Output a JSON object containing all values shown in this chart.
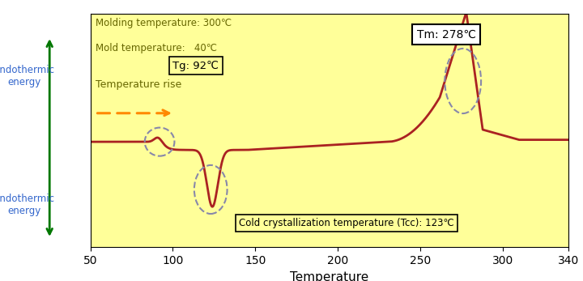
{
  "bg_color": "#FFFF99",
  "curve_color": "#AA2222",
  "x_min": 50,
  "x_max": 340,
  "x_label": "Temperature",
  "x_ticks": [
    50,
    100,
    150,
    200,
    250,
    300,
    340
  ],
  "title_line1": "Molding temperature: 300℃",
  "title_line2": "Mold temperature:   40℃",
  "temp_rise_label": "Temperature rise",
  "arrow_color": "#FF8800",
  "tg_label": "Tg: 92℃",
  "tcc_label": "Cold crystallization temperature (Tcc): 123℃",
  "tm_label": "Tm: 278℃",
  "endothermic_label": "Endothermic\nenergy",
  "arrow_color_axis": "#007700",
  "text_color_olive": "#666600",
  "ellipse_color": "#8888AA"
}
